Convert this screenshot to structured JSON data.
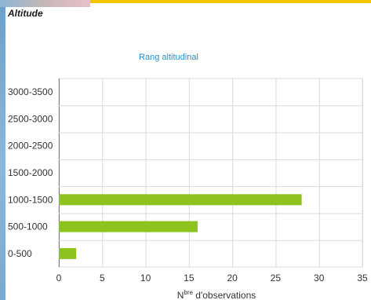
{
  "page": {
    "section_title": "Altitude"
  },
  "colors": {
    "bar": "#8dc21f",
    "title": "#2b8fc8",
    "grid": "#d9d9d9",
    "axis": "#7a7a7a",
    "text": "#333333"
  },
  "chart_data": {
    "type": "bar",
    "orientation": "horizontal",
    "title": "Rang altitudinal",
    "xlabel_main": "N",
    "xlabel_sup": "bre",
    "xlabel_rest": " d'observations",
    "categories": [
      "3000-3500",
      "2500-3000",
      "2000-2500",
      "1500-2000",
      "1000-1500",
      "500-1000",
      "0-500"
    ],
    "values": [
      0,
      0,
      0,
      0,
      28,
      16,
      2
    ],
    "xlim": [
      0,
      35
    ],
    "xticks": [
      0,
      5,
      10,
      15,
      20,
      25,
      30,
      35
    ],
    "grid": true,
    "legend": "none"
  }
}
